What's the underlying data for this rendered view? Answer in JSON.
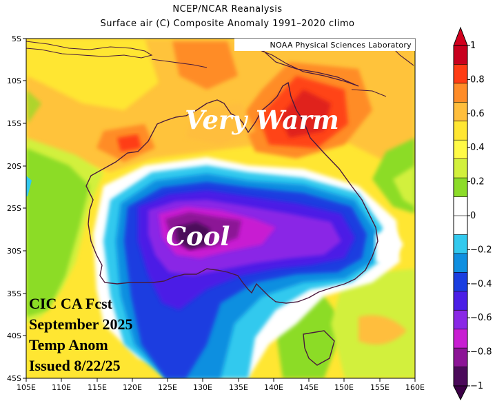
{
  "header": {
    "title_line1": "NCEP/NCAR Reanalysis",
    "title_line2": "Surface air (C) Composite Anomaly 1991–2020 climo"
  },
  "credit": "NOAA Physical Sciences Laboratory",
  "labels": {
    "warm": "Very Warm",
    "cool": "Cool"
  },
  "forecast_note": [
    "CIC CA Fcst",
    "September 2025",
    "Temp Anom",
    "Issued 8/22/25"
  ],
  "axes": {
    "lat_ticks": [
      "5S",
      "10S",
      "15S",
      "20S",
      "25S",
      "30S",
      "35S",
      "40S",
      "45S"
    ],
    "lon_ticks": [
      "105E",
      "110E",
      "115E",
      "120E",
      "125E",
      "130E",
      "135E",
      "140E",
      "145E",
      "150E",
      "155E",
      "160E"
    ]
  },
  "colorbar": {
    "labels": [
      "1",
      "0.8",
      "0.6",
      "0.4",
      "0.2",
      "0",
      "−0.2",
      "−0.4",
      "−0.6",
      "−0.8",
      "−1"
    ],
    "colors": [
      "#c8001e",
      "#ff3c14",
      "#ff8c28",
      "#ffbe3c",
      "#ffe632",
      "#fffa46",
      "#d2f03c",
      "#8cdc28",
      "#ffffff",
      "#ffffff",
      "#33c9ee",
      "#0f8fe0",
      "#1a3ee0",
      "#4b1ee6",
      "#8a28e6",
      "#c81ed2",
      "#8c1496",
      "#4b0a5a"
    ],
    "top_color": "#d2001e",
    "bottom_color": "#3c0046"
  }
}
